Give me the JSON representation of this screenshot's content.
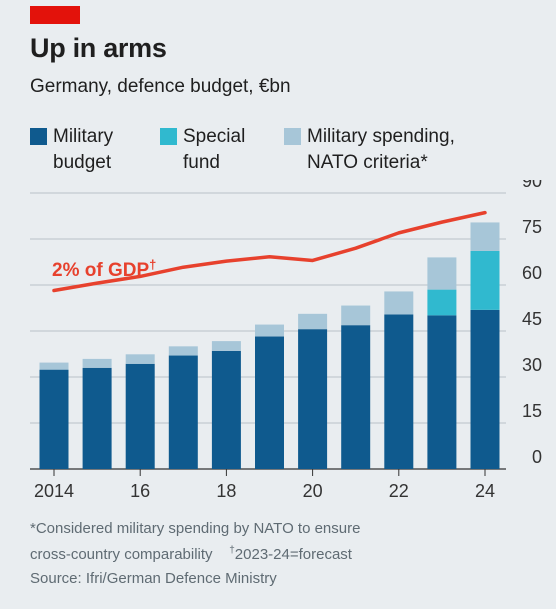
{
  "header": {
    "title": "Up in arms",
    "subtitle": "Germany, defence budget, €bn"
  },
  "colors": {
    "accent_red": "#e3120b",
    "military_budget": "#0f5a8e",
    "special_fund": "#30b9cf",
    "nato_criteria": "#a7c6d8",
    "gdp_line": "#e7412d",
    "grid": "#b9c1c7"
  },
  "legend": [
    {
      "label": "Military\nbudget",
      "color": "#0f5a8e"
    },
    {
      "label": "Special\nfund",
      "color": "#30b9cf"
    },
    {
      "label": "Military spending,\nNATO criteria*",
      "color": "#a7c6d8"
    }
  ],
  "annotation": {
    "gdp_label": "2% of GDP",
    "gdp_mark": "†"
  },
  "footnotes": {
    "line1": "*Considered military spending by NATO to ensure",
    "line2_a": "cross-country comparability",
    "line2_mark": "†",
    "line2_b": "2023-24=forecast",
    "source": "Source: Ifri/German Defence Ministry"
  },
  "chart_data": {
    "type": "bar",
    "stacked": true,
    "x": [
      2014,
      2015,
      2016,
      2017,
      2018,
      2019,
      2020,
      2021,
      2022,
      2023,
      2024
    ],
    "x_tick_labels": [
      {
        "x": 2014,
        "label": "2014"
      },
      {
        "x": 2016,
        "label": "16"
      },
      {
        "x": 2018,
        "label": "18"
      },
      {
        "x": 2020,
        "label": "20"
      },
      {
        "x": 2022,
        "label": "22"
      },
      {
        "x": 2024,
        "label": "24"
      }
    ],
    "ylim": [
      0,
      90
    ],
    "yticks": [
      0,
      15,
      30,
      45,
      60,
      75,
      90
    ],
    "y_axis_side": "right",
    "grid": true,
    "series": [
      {
        "name": "Military budget",
        "values": [
          32.4,
          33.0,
          34.3,
          37.0,
          38.5,
          43.2,
          45.6,
          46.9,
          50.4,
          50.1,
          51.9
        ]
      },
      {
        "name": "Special fund",
        "values": [
          0,
          0,
          0,
          0,
          0,
          0,
          0,
          0,
          0,
          8.4,
          19.2
        ]
      },
      {
        "name": "Military spending, NATO criteria*",
        "values": [
          2.3,
          2.9,
          3.1,
          3.0,
          3.2,
          3.9,
          5.0,
          6.4,
          7.5,
          10.5,
          9.3
        ]
      }
    ],
    "line": {
      "name": "2% of GDP",
      "x": [
        2014,
        2015,
        2016,
        2017,
        2018,
        2019,
        2020,
        2021,
        2022,
        2023,
        2024
      ],
      "values": [
        58.2,
        60.6,
        62.8,
        65.8,
        67.8,
        69.2,
        68.0,
        72.0,
        77.0,
        80.5,
        83.6
      ]
    }
  }
}
